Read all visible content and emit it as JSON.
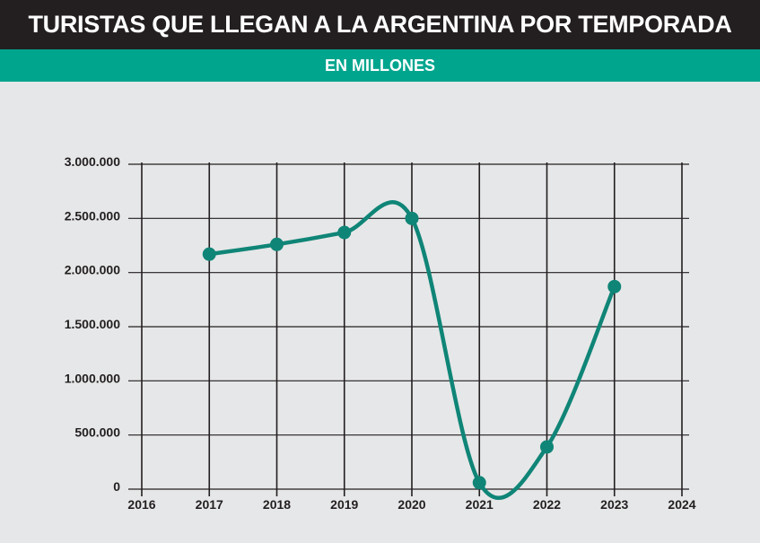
{
  "header": {
    "title": "TURISTAS QUE LLEGAN A LA ARGENTINA POR TEMPORADA",
    "subtitle": "EN MILLONES"
  },
  "colors": {
    "title_bg": "#231f20",
    "subtitle_bg": "#00a58e",
    "background": "#e6e7e8",
    "series_line": "#0f8577",
    "grid": "#231f20"
  },
  "chart_data": {
    "type": "line",
    "title": "TURISTAS QUE LLEGAN A LA ARGENTINA POR TEMPORADA",
    "subtitle": "EN MILLONES",
    "xlabel": "",
    "ylabel": "",
    "x_ticks": [
      "2016",
      "2017",
      "2018",
      "2019",
      "2020",
      "2021",
      "2022",
      "2023",
      "2024"
    ],
    "x_range": [
      2016,
      2024
    ],
    "y_ticks": [
      0,
      500000,
      1000000,
      1500000,
      2000000,
      2500000,
      3000000
    ],
    "y_tick_labels": [
      "0",
      "500.000",
      "1.000.000",
      "1.500.000",
      "2.000.000",
      "2.500.000",
      "3.000.000"
    ],
    "ylim": [
      0,
      3000000
    ],
    "grid": true,
    "smooth": true,
    "series": [
      {
        "x": [
          2017,
          2018,
          2019,
          2020,
          2021,
          2022,
          2023
        ],
        "y": [
          2170000,
          2260000,
          2370000,
          2500000,
          60000,
          390000,
          1870000
        ]
      }
    ]
  }
}
